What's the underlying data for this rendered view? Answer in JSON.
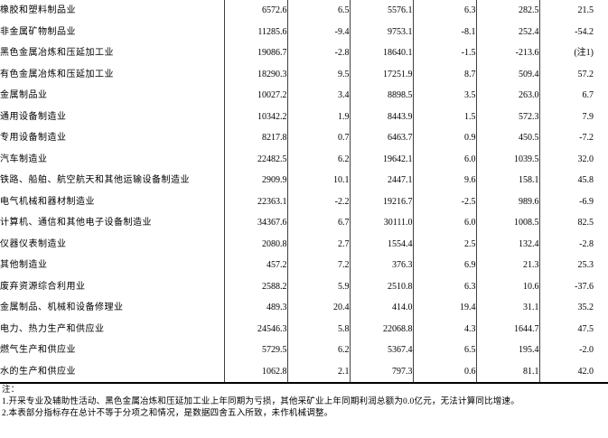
{
  "table": {
    "rows": [
      {
        "name": "橡胶和塑料制品业",
        "values": [
          "6572.6",
          "6.5",
          "5576.1",
          "6.3",
          "282.5",
          "21.5"
        ]
      },
      {
        "name": "非金属矿物制品业",
        "values": [
          "11285.6",
          "-9.4",
          "9753.1",
          "-8.1",
          "252.4",
          "-54.2"
        ]
      },
      {
        "name": "黑色金属冶炼和压延加工业",
        "values": [
          "19086.7",
          "-2.8",
          "18640.1",
          "-1.5",
          "-213.6",
          "(注1)"
        ]
      },
      {
        "name": "有色金属冶炼和压延加工业",
        "values": [
          "18290.3",
          "9.5",
          "17251.9",
          "8.7",
          "509.4",
          "57.2"
        ]
      },
      {
        "name": "金属制品业",
        "values": [
          "10027.2",
          "3.4",
          "8898.5",
          "3.5",
          "263.0",
          "6.7"
        ]
      },
      {
        "name": "通用设备制造业",
        "values": [
          "10342.2",
          "1.9",
          "8443.9",
          "1.5",
          "572.3",
          "7.9"
        ]
      },
      {
        "name": "专用设备制造业",
        "values": [
          "8217.8",
          "0.7",
          "6463.7",
          "0.9",
          "450.5",
          "-7.2"
        ]
      },
      {
        "name": "汽车制造业",
        "values": [
          "22482.5",
          "6.2",
          "19642.1",
          "6.0",
          "1039.5",
          "32.0"
        ]
      },
      {
        "name": "铁路、船舶、航空航天和其他运输设备制造业",
        "values": [
          "2909.9",
          "10.1",
          "2447.1",
          "9.6",
          "158.1",
          "45.8"
        ]
      },
      {
        "name": "电气机械和器材制造业",
        "values": [
          "22363.1",
          "-2.2",
          "19216.7",
          "-2.5",
          "989.6",
          "-6.9"
        ]
      },
      {
        "name": "计算机、通信和其他电子设备制造业",
        "values": [
          "34367.6",
          "6.7",
          "30111.0",
          "6.0",
          "1008.5",
          "82.5"
        ]
      },
      {
        "name": "仪器仪表制造业",
        "values": [
          "2080.8",
          "2.7",
          "1554.4",
          "2.5",
          "132.4",
          "-2.8"
        ]
      },
      {
        "name": "其他制造业",
        "values": [
          "457.2",
          "7.2",
          "376.3",
          "6.9",
          "21.3",
          "25.3"
        ]
      },
      {
        "name": "废弃资源综合利用业",
        "values": [
          "2588.2",
          "5.9",
          "2510.8",
          "6.3",
          "10.6",
          "-37.6"
        ]
      },
      {
        "name": "金属制品、机械和设备修理业",
        "values": [
          "489.3",
          "20.4",
          "414.0",
          "19.4",
          "31.1",
          "35.2"
        ]
      },
      {
        "name": "电力、热力生产和供应业",
        "values": [
          "24546.3",
          "5.8",
          "22068.8",
          "4.3",
          "1644.7",
          "47.5"
        ]
      },
      {
        "name": "燃气生产和供应业",
        "values": [
          "5729.5",
          "6.2",
          "5367.4",
          "6.5",
          "195.4",
          "-2.0"
        ]
      },
      {
        "name": "水的生产和供应业",
        "values": [
          "1062.8",
          "2.1",
          "797.3",
          "0.6",
          "81.1",
          "42.0"
        ]
      }
    ]
  },
  "notes": {
    "label": "注：",
    "items": [
      "1.开采专业及辅助性活动、黑色金属冶炼和压延加工业上年同期为亏损，其他采矿业上年同期利润总额为0.0亿元，无法计算同比增速。",
      "2.本表部分指标存在总计不等于分项之和情况，是数据四舍五入所致，未作机械调整。"
    ]
  },
  "colors": {
    "grid_line": "#404040",
    "bottom_rule": "#000000",
    "text": "#000000",
    "background": "#ffffff"
  }
}
